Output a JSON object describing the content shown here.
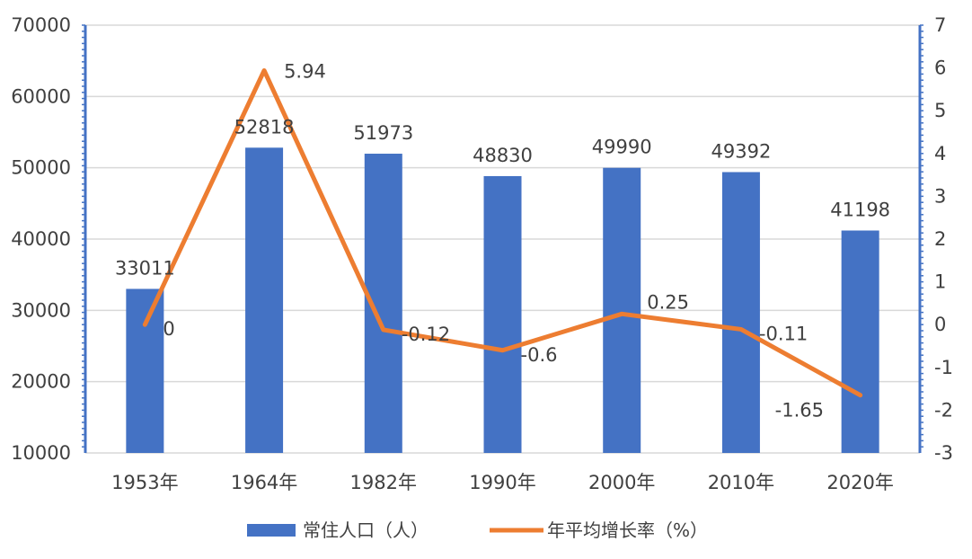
{
  "colors": {
    "bar": "#4472C4",
    "line": "#ED7D31",
    "grid": "#D9D9D9",
    "axis": "#4472C4",
    "text": "#404040"
  },
  "chart_data": {
    "type": "bar",
    "categories": [
      "1953年",
      "1964年",
      "1982年",
      "1990年",
      "2000年",
      "2010年",
      "2020年"
    ],
    "series": [
      {
        "name": "常住人口（人）",
        "type": "bar",
        "axis": "left",
        "values": [
          33011,
          52818,
          51973,
          48830,
          49990,
          49392,
          41198
        ],
        "labels": [
          "33011",
          "52818",
          "51973",
          "48830",
          "49990",
          "49392",
          "41198"
        ]
      },
      {
        "name": "年平均增长率（%）",
        "type": "line",
        "axis": "right",
        "values": [
          0,
          5.94,
          -0.12,
          -0.6,
          0.25,
          -0.11,
          -1.65
        ],
        "labels": [
          "0",
          "5.94",
          "-0.12",
          "-0.6",
          "0.25",
          "-0.11",
          "-1.65"
        ]
      }
    ],
    "y_left": {
      "range": [
        10000,
        70000
      ],
      "ticks": [
        "10000",
        "20000",
        "30000",
        "40000",
        "50000",
        "60000",
        "70000"
      ]
    },
    "y_right": {
      "range": [
        -3,
        7
      ],
      "ticks": [
        "-3",
        "-2",
        "-1",
        "0",
        "1",
        "2",
        "3",
        "4",
        "5",
        "6",
        "7"
      ]
    },
    "grid": true,
    "legend": "bottom"
  }
}
